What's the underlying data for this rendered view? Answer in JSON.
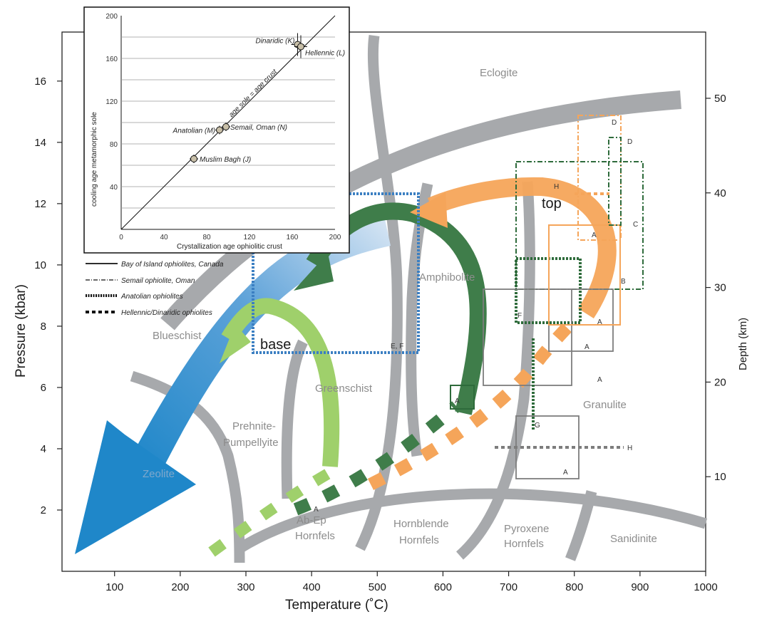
{
  "chart_data": {
    "main": {
      "type": "diagram",
      "xlabel": "Temperature (˚C)",
      "ylabel_left": "Pressure (kbar)",
      "ylabel_right": "Depth (km)",
      "xlim": [
        20,
        1000
      ],
      "ylim_p": [
        0,
        17.6
      ],
      "ylim_depth": [
        0,
        57
      ],
      "x_ticks": [
        "100",
        "200",
        "300",
        "400",
        "500",
        "600",
        "700",
        "800",
        "900",
        "1000"
      ],
      "p_ticks": [
        "2",
        "4",
        "6",
        "8",
        "10",
        "12",
        "14",
        "16"
      ],
      "depth_ticks": [
        "10",
        "20",
        "30",
        "40",
        "50"
      ],
      "facies": [
        "Eclogite",
        "Amphibolite",
        "Blueschist",
        "Greenschist",
        "Prehnite-",
        "Pumpellyite",
        "Zeolite",
        "Granulite",
        "Ab-Ep",
        "Hornfels",
        "Hornblende",
        "Hornfels",
        "Pyroxene",
        "Hornfels",
        "Sanidinite"
      ],
      "arrow_labels": [
        "top",
        "base"
      ],
      "box_labels": [
        "D",
        "D",
        "H",
        "C",
        "A",
        "B",
        "A",
        "A",
        "A",
        "A",
        "E, F",
        "F",
        "G",
        "A",
        "A",
        "H",
        "A"
      ],
      "colors": {
        "gray": "#a7a9ac",
        "blue": "#1f87c9",
        "dark_green": "#3f7d4a",
        "light_green": "#9fd06b",
        "orange": "#f5a55a",
        "dotted_blue": "#3b7fc2"
      }
    },
    "inset": {
      "type": "scatter",
      "xlabel": "Crystallization age ophiolitic crust",
      "ylabel": "cooling age metamorphic sole",
      "line_label": "age sole = age crust",
      "xlim": [
        0,
        200
      ],
      "ylim": [
        0,
        200
      ],
      "x_ticks": [
        "0",
        "40",
        "80",
        "120",
        "160",
        "200"
      ],
      "y_ticks": [
        "40",
        "80",
        "120",
        "160",
        "200"
      ],
      "points": [
        {
          "label": "Dinaridic (K)",
          "x": 165,
          "y": 173
        },
        {
          "label": "Hellennic (L)",
          "x": 168,
          "y": 171
        },
        {
          "label": "Anatolian (M)",
          "x": 92,
          "y": 93
        },
        {
          "label": "Semail, Oman (N)",
          "x": 98,
          "y": 96
        },
        {
          "label": "Muslim Bagh (J)",
          "x": 68,
          "y": 66
        }
      ]
    },
    "legend": [
      {
        "label": "Bay of Island ophiolites, Canada",
        "style": "solid"
      },
      {
        "label": "Semail ophiolite, Oman",
        "style": "dashdot"
      },
      {
        "label": "Anatolian ophiolites",
        "style": "hatched"
      },
      {
        "label": "Hellennic/Dinaridic ophiolites",
        "style": "dashed"
      }
    ]
  }
}
